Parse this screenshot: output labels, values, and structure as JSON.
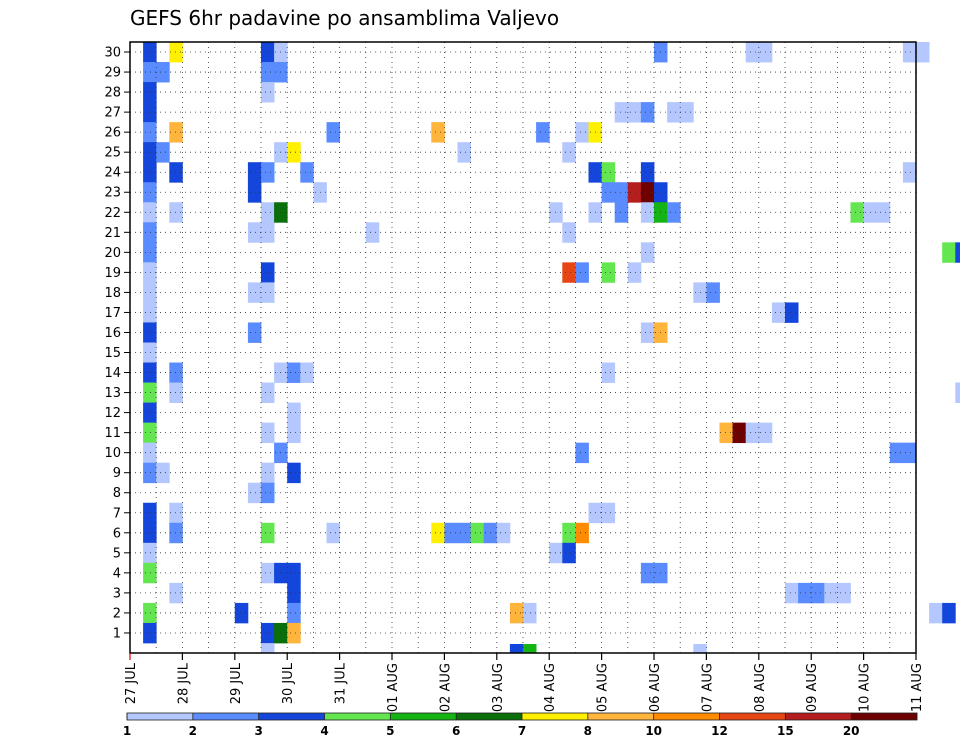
{
  "chart_data": {
    "type": "heatmap",
    "title": "GEFS 6hr padavine po ansamblima Valjevo",
    "xlabel": "",
    "ylabel": "",
    "x_ticks": [
      "27 JUL",
      "28 JUL",
      "29 JUL",
      "30 JUL",
      "31 JUL",
      "01 AUG",
      "02 AUG",
      "03 AUG",
      "04 AUG",
      "05 AUG",
      "06 AUG",
      "07 AUG",
      "08 AUG",
      "09 AUG",
      "10 AUG",
      "11 AUG"
    ],
    "y_ticks": [
      "1",
      "2",
      "3",
      "4",
      "5",
      "6",
      "7",
      "8",
      "9",
      "10",
      "11",
      "12",
      "13",
      "14",
      "15",
      "16",
      "17",
      "18",
      "19",
      "20",
      "21",
      "22",
      "23",
      "24",
      "25",
      "26",
      "27",
      "28",
      "29",
      "30"
    ],
    "y_range": [
      1,
      30
    ],
    "grid": true,
    "legend": {
      "placement": "bottom",
      "labels": [
        "1",
        "2",
        "3",
        "4",
        "5",
        "6",
        "7",
        "8",
        "10",
        "12",
        "15",
        "20"
      ],
      "colors": [
        "#b4c8ff",
        "#5a8cff",
        "#1446dc",
        "#64e650",
        "#14b414",
        "#0a6e0a",
        "#fff000",
        "#ffb43c",
        "#ff8c00",
        "#e64614",
        "#b41e1e",
        "#6e0000"
      ]
    },
    "cells": [
      [
        0,
        30,
        3
      ],
      [
        0,
        29,
        2
      ],
      [
        0,
        28,
        3
      ],
      [
        0,
        27,
        3
      ],
      [
        0,
        26,
        2
      ],
      [
        0,
        25,
        3
      ],
      [
        0,
        24,
        3
      ],
      [
        0,
        23,
        2
      ],
      [
        0,
        22,
        1
      ],
      [
        0,
        21,
        2
      ],
      [
        0,
        20,
        2
      ],
      [
        0,
        19,
        1
      ],
      [
        0,
        18,
        1
      ],
      [
        0,
        17,
        1
      ],
      [
        0,
        16,
        3
      ],
      [
        0,
        15,
        1
      ],
      [
        0,
        14,
        3
      ],
      [
        0,
        13,
        4
      ],
      [
        0,
        12,
        3
      ],
      [
        0,
        11,
        4
      ],
      [
        0,
        10,
        1
      ],
      [
        0,
        9,
        2
      ],
      [
        0,
        7,
        3
      ],
      [
        0,
        6,
        3
      ],
      [
        0,
        5,
        1
      ],
      [
        0,
        4,
        4
      ],
      [
        0,
        2,
        4
      ],
      [
        0,
        1,
        3
      ],
      [
        1,
        29,
        2
      ],
      [
        1,
        25,
        2
      ],
      [
        1,
        9,
        1
      ],
      [
        2,
        30,
        7
      ],
      [
        2,
        26,
        8
      ],
      [
        2,
        24,
        3
      ],
      [
        2,
        22,
        1
      ],
      [
        2,
        14,
        2
      ],
      [
        2,
        13,
        1
      ],
      [
        2,
        7,
        1
      ],
      [
        2,
        6,
        2
      ],
      [
        2,
        3,
        1
      ],
      [
        7,
        2,
        3
      ],
      [
        8,
        24,
        3
      ],
      [
        8,
        23,
        3
      ],
      [
        8,
        21,
        1
      ],
      [
        8,
        18,
        1
      ],
      [
        8,
        16,
        2
      ],
      [
        8,
        8,
        1
      ],
      [
        9,
        30,
        3
      ],
      [
        9,
        29,
        2
      ],
      [
        9,
        28,
        1
      ],
      [
        9,
        24,
        2
      ],
      [
        9,
        22,
        1
      ],
      [
        9,
        21,
        1
      ],
      [
        9,
        19,
        3
      ],
      [
        9,
        18,
        1
      ],
      [
        9,
        13,
        1
      ],
      [
        9,
        11,
        1
      ],
      [
        9,
        9,
        1
      ],
      [
        9,
        8,
        2
      ],
      [
        9,
        6,
        4
      ],
      [
        9,
        4,
        1
      ],
      [
        9,
        1,
        3
      ],
      [
        10,
        30,
        1
      ],
      [
        10,
        29,
        2
      ],
      [
        10,
        25,
        1
      ],
      [
        10,
        22,
        6
      ],
      [
        10,
        14,
        1
      ],
      [
        10,
        10,
        2
      ],
      [
        10,
        4,
        3
      ],
      [
        10,
        1,
        6
      ],
      [
        11,
        25,
        7
      ],
      [
        11,
        14,
        2
      ],
      [
        11,
        12,
        1
      ],
      [
        11,
        11,
        1
      ],
      [
        11,
        9,
        3
      ],
      [
        11,
        4,
        3
      ],
      [
        11,
        3,
        3
      ],
      [
        11,
        2,
        2
      ],
      [
        11,
        1,
        8
      ],
      [
        12,
        24,
        2
      ],
      [
        12,
        14,
        1
      ],
      [
        13,
        23,
        1
      ],
      [
        14,
        26,
        2
      ],
      [
        14,
        6,
        1
      ],
      [
        17,
        21,
        1
      ],
      [
        22,
        26,
        8
      ],
      [
        22,
        6,
        7
      ],
      [
        23,
        6,
        2
      ],
      [
        24,
        25,
        1
      ],
      [
        24,
        6,
        2
      ],
      [
        25,
        6,
        4
      ],
      [
        26,
        6,
        2
      ],
      [
        27,
        6,
        1
      ],
      [
        28,
        2,
        8
      ],
      [
        29,
        2,
        1
      ],
      [
        30,
        26,
        2
      ],
      [
        31,
        22,
        1
      ],
      [
        31,
        5,
        1
      ],
      [
        32,
        25,
        1
      ],
      [
        32,
        21,
        1
      ],
      [
        32,
        19,
        10
      ],
      [
        32,
        6,
        4
      ],
      [
        32,
        5,
        3
      ],
      [
        33,
        26,
        1
      ],
      [
        33,
        19,
        2
      ],
      [
        33,
        10,
        2
      ],
      [
        33,
        6,
        9
      ],
      [
        34,
        26,
        7
      ],
      [
        34,
        24,
        3
      ],
      [
        34,
        22,
        1
      ],
      [
        34,
        7,
        1
      ],
      [
        35,
        24,
        4
      ],
      [
        35,
        23,
        2
      ],
      [
        35,
        19,
        4
      ],
      [
        35,
        14,
        1
      ],
      [
        35,
        7,
        1
      ],
      [
        36,
        27,
        1
      ],
      [
        36,
        23,
        2
      ],
      [
        36,
        22,
        2
      ],
      [
        37,
        27,
        1
      ],
      [
        37,
        23,
        11
      ],
      [
        37,
        19,
        1
      ],
      [
        38,
        27,
        2
      ],
      [
        38,
        24,
        3
      ],
      [
        38,
        23,
        12
      ],
      [
        38,
        22,
        1
      ],
      [
        38,
        20,
        1
      ],
      [
        38,
        16,
        1
      ],
      [
        38,
        4,
        2
      ],
      [
        39,
        30,
        2
      ],
      [
        39,
        23,
        3
      ],
      [
        39,
        22,
        5
      ],
      [
        39,
        16,
        8
      ],
      [
        39,
        4,
        2
      ],
      [
        40,
        27,
        1
      ],
      [
        40,
        22,
        2
      ],
      [
        41,
        27,
        1
      ],
      [
        42,
        18,
        1
      ],
      [
        43,
        18,
        2
      ],
      [
        44,
        11,
        8
      ],
      [
        45,
        11,
        12
      ],
      [
        46,
        30,
        1
      ],
      [
        46,
        11,
        1
      ],
      [
        47,
        30,
        1
      ],
      [
        47,
        11,
        1
      ],
      [
        48,
        17,
        1
      ],
      [
        49,
        17,
        3
      ],
      [
        49,
        3,
        1
      ],
      [
        50,
        3,
        2
      ],
      [
        51,
        3,
        2
      ],
      [
        52,
        3,
        1
      ],
      [
        53,
        3,
        1
      ],
      [
        54,
        22,
        4
      ],
      [
        55,
        22,
        1
      ],
      [
        56,
        22,
        1
      ],
      [
        57,
        10,
        2
      ],
      [
        58,
        30,
        1
      ],
      [
        58,
        24,
        1
      ],
      [
        58,
        10,
        2
      ],
      [
        59,
        30,
        1
      ],
      [
        60,
        2,
        1
      ],
      [
        61,
        20,
        4
      ],
      [
        61,
        2,
        3
      ],
      [
        62,
        20,
        3
      ],
      [
        62,
        13,
        1
      ]
    ],
    "tiny_marks": [
      [
        28,
        3
      ],
      [
        29,
        5
      ],
      [
        42,
        1
      ],
      [
        9,
        1
      ]
    ]
  }
}
